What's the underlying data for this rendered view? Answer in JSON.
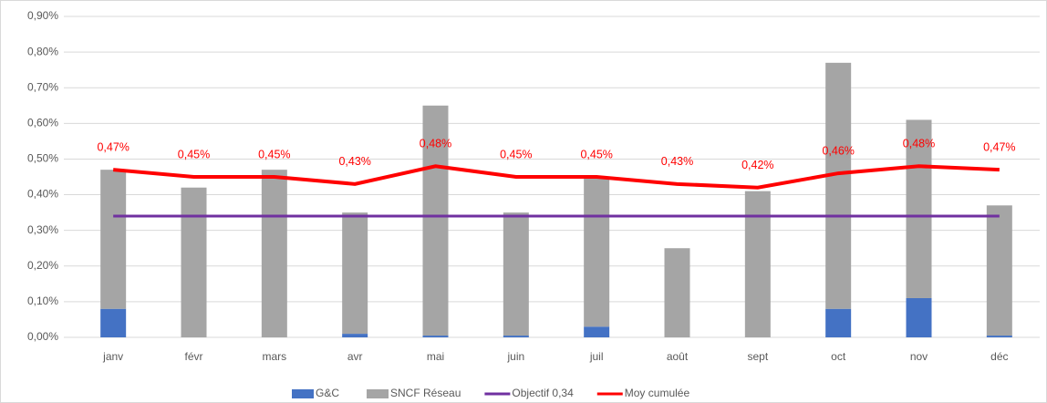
{
  "chart_data": {
    "type": "bar",
    "categories": [
      "janv",
      "févr",
      "mars",
      "avr",
      "mai",
      "juin",
      "juil",
      "août",
      "sept",
      "oct",
      "nov",
      "déc"
    ],
    "series": [
      {
        "name": "G&C",
        "type": "bar",
        "color": "#4472c4",
        "values": [
          0.08,
          0,
          0,
          0.01,
          0.005,
          0.005,
          0.03,
          0,
          0,
          0.08,
          0.11,
          0.005
        ]
      },
      {
        "name": "SNCF Réseau",
        "type": "bar",
        "color": "#a5a5a5",
        "values": [
          0.39,
          0.42,
          0.47,
          0.34,
          0.645,
          0.345,
          0.42,
          0.25,
          0.41,
          0.69,
          0.5,
          0.365
        ]
      },
      {
        "name": "Objectif 0,34",
        "type": "line",
        "color": "#7030a0",
        "values": [
          0.34,
          0.34,
          0.34,
          0.34,
          0.34,
          0.34,
          0.34,
          0.34,
          0.34,
          0.34,
          0.34,
          0.34
        ]
      },
      {
        "name": "Moy cumulée",
        "type": "line",
        "color": "#ff0000",
        "values": [
          0.47,
          0.45,
          0.45,
          0.43,
          0.48,
          0.45,
          0.45,
          0.43,
          0.42,
          0.46,
          0.48,
          0.47
        ],
        "value_labels": [
          "0,47%",
          "0,45%",
          "0,45%",
          "0,43%",
          "0,48%",
          "0,45%",
          "0,45%",
          "0,43%",
          "0,42%",
          "0,46%",
          "0,48%",
          "0,47%"
        ]
      }
    ],
    "stacked": true,
    "ylim": [
      0,
      0.9
    ],
    "yticks": [
      {
        "value": 0,
        "label": "0,00%"
      },
      {
        "value": 0.1,
        "label": "0,10%"
      },
      {
        "value": 0.2,
        "label": "0,20%"
      },
      {
        "value": 0.3,
        "label": "0,30%"
      },
      {
        "value": 0.4,
        "label": "0,40%"
      },
      {
        "value": 0.5,
        "label": "0,50%"
      },
      {
        "value": 0.6,
        "label": "0,60%"
      },
      {
        "value": 0.7,
        "label": "0,70%"
      },
      {
        "value": 0.8,
        "label": "0,80%"
      },
      {
        "value": 0.9,
        "label": "0,90%"
      }
    ],
    "grid": true,
    "legend": "bottom"
  }
}
